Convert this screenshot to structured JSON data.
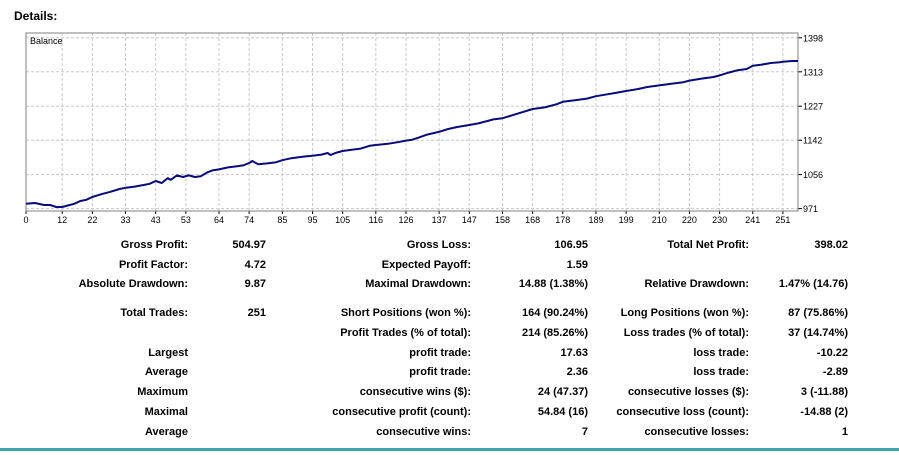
{
  "heading": "Details:",
  "chart_data": {
    "type": "line",
    "title": "Balance",
    "xlabel": "",
    "ylabel": "",
    "xlim": [
      0,
      256
    ],
    "ylim": [
      965,
      1410
    ],
    "x_ticks": [
      0,
      12,
      22,
      33,
      43,
      53,
      64,
      74,
      85,
      95,
      105,
      116,
      126,
      137,
      147,
      158,
      168,
      178,
      189,
      199,
      210,
      220,
      230,
      241,
      251
    ],
    "y_ticks": [
      971,
      1056,
      1142,
      1227,
      1313,
      1398
    ],
    "grid": true,
    "colors": {
      "line": "#0a0a78",
      "grid": "#c8c8c8",
      "frame": "#808080"
    },
    "series": [
      {
        "x": [
          0,
          3,
          6,
          8,
          10,
          12,
          14,
          16,
          18,
          20,
          22,
          25,
          28,
          31,
          33,
          36,
          39,
          41,
          43,
          45,
          47,
          48,
          50,
          52,
          54,
          56,
          58,
          60,
          62,
          64,
          67,
          70,
          72,
          74,
          75,
          77,
          80,
          83,
          85,
          88,
          92,
          95,
          98,
          100,
          101,
          103,
          105,
          108,
          111,
          114,
          116,
          120,
          124,
          126,
          128,
          130,
          133,
          137,
          140,
          143,
          147,
          150,
          153,
          155,
          158,
          162,
          165,
          168,
          172,
          176,
          178,
          182,
          186,
          189,
          193,
          196,
          199,
          203,
          206,
          210,
          214,
          218,
          220,
          224,
          228,
          230,
          233,
          236,
          239,
          241,
          244,
          247,
          250,
          251,
          254,
          256
        ],
        "y": [
          983,
          985,
          980,
          980,
          975,
          975,
          979,
          983,
          990,
          993,
          1000,
          1007,
          1013,
          1020,
          1023,
          1026,
          1030,
          1033,
          1040,
          1035,
          1047,
          1043,
          1054,
          1050,
          1054,
          1050,
          1052,
          1061,
          1067,
          1069,
          1074,
          1077,
          1079,
          1085,
          1090,
          1082,
          1084,
          1087,
          1092,
          1097,
          1101,
          1103,
          1106,
          1110,
          1105,
          1111,
          1115,
          1118,
          1121,
          1128,
          1130,
          1133,
          1138,
          1141,
          1143,
          1148,
          1156,
          1163,
          1170,
          1175,
          1180,
          1184,
          1190,
          1194,
          1197,
          1206,
          1213,
          1220,
          1224,
          1232,
          1238,
          1242,
          1246,
          1252,
          1257,
          1261,
          1265,
          1270,
          1275,
          1279,
          1283,
          1287,
          1291,
          1296,
          1300,
          1304,
          1311,
          1317,
          1320,
          1328,
          1331,
          1335,
          1337,
          1338,
          1340,
          1340
        ]
      }
    ]
  },
  "stats": {
    "gross_profit": {
      "label": "Gross Profit:",
      "value": "504.97"
    },
    "gross_loss": {
      "label": "Gross Loss:",
      "value": "106.95"
    },
    "total_net_profit": {
      "label": "Total Net Profit:",
      "value": "398.02"
    },
    "profit_factor": {
      "label": "Profit Factor:",
      "value": "4.72"
    },
    "expected_payoff": {
      "label": "Expected Payoff:",
      "value": "1.59"
    },
    "absolute_drawdown": {
      "label": "Absolute Drawdown:",
      "value": "9.87"
    },
    "maximal_drawdown": {
      "label": "Maximal Drawdown:",
      "value": "14.88 (1.38%)"
    },
    "relative_drawdown": {
      "label": "Relative Drawdown:",
      "value": "1.47% (14.76)"
    },
    "total_trades": {
      "label": "Total Trades:",
      "value": "251"
    },
    "short_positions": {
      "label": "Short Positions (won %):",
      "value": "164 (90.24%)"
    },
    "long_positions": {
      "label": "Long Positions (won %):",
      "value": "87 (75.86%)"
    },
    "profit_trades": {
      "label": "Profit Trades (% of total):",
      "value": "214 (85.26%)"
    },
    "loss_trades": {
      "label": "Loss trades (% of total):",
      "value": "37 (14.74%)"
    },
    "rows": [
      {
        "group": "Largest",
        "p_label": "profit trade:",
        "p_value": "17.63",
        "l_label": "loss trade:",
        "l_value": "-10.22"
      },
      {
        "group": "Average",
        "p_label": "profit trade:",
        "p_value": "2.36",
        "l_label": "loss trade:",
        "l_value": "-2.89"
      },
      {
        "group": "Maximum",
        "p_label": "consecutive wins ($):",
        "p_value": "24 (47.37)",
        "l_label": "consecutive losses ($):",
        "l_value": "3 (-11.88)"
      },
      {
        "group": "Maximal",
        "p_label": "consecutive profit (count):",
        "p_value": "54.84 (16)",
        "l_label": "consecutive loss (count):",
        "l_value": "-14.88 (2)"
      },
      {
        "group": "Average",
        "p_label": "consecutive wins:",
        "p_value": "7",
        "l_label": "consecutive losses:",
        "l_value": "1"
      }
    ]
  }
}
